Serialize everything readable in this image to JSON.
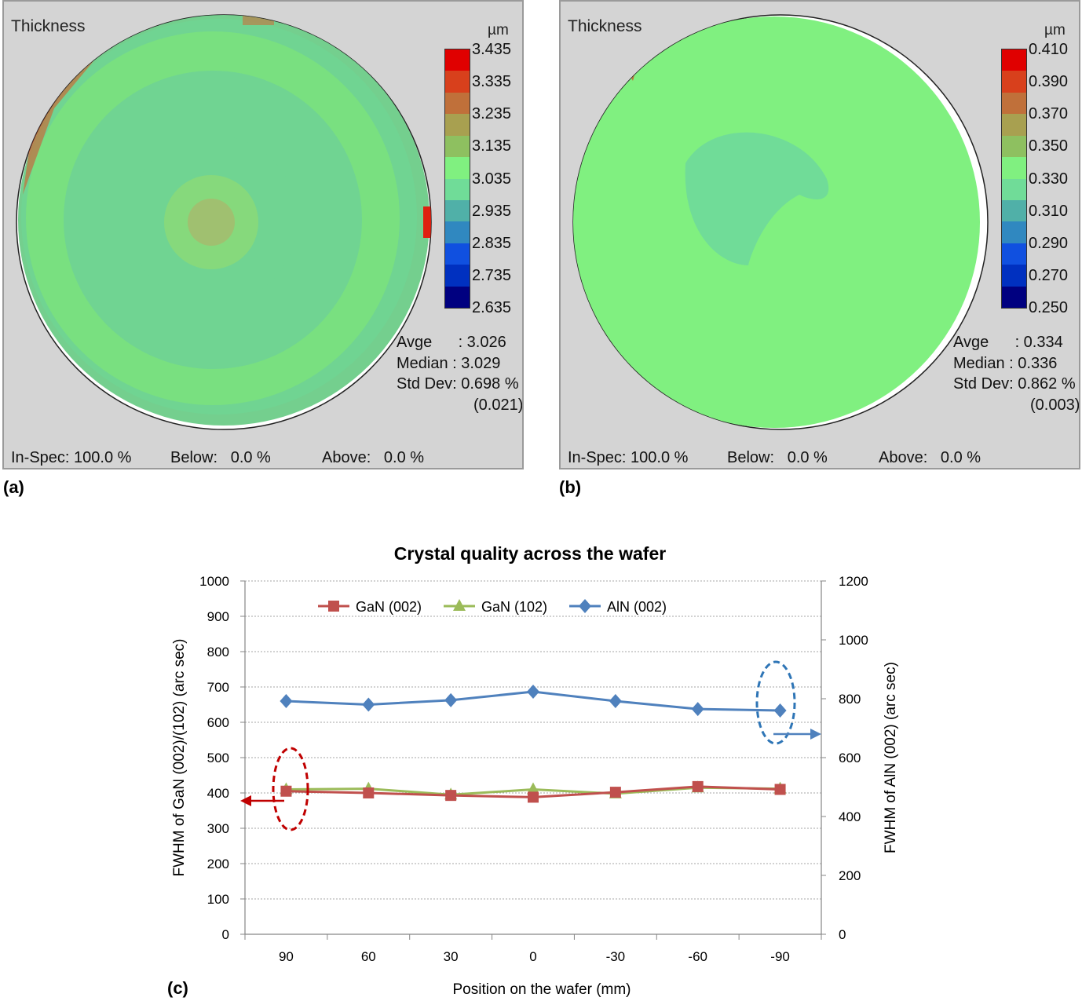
{
  "panel_a": {
    "title": "Thickness",
    "unit": "µm",
    "scale_labels": [
      "3.435",
      "3.335",
      "3.235",
      "3.135",
      "3.035",
      "2.935",
      "2.835",
      "2.735",
      "2.635"
    ],
    "stats": {
      "avg": "Avge      : 3.026",
      "median": "Median : 3.029",
      "stddev": "Std Dev: 0.698 %",
      "stddev_abs": "(0.021)"
    },
    "footer": {
      "inspec": "In-Spec: 100.0 %",
      "below": "Below:   0.0 %",
      "above": "Above:   0.0 %"
    },
    "label": "(a)"
  },
  "panel_b": {
    "title": "Thickness",
    "unit": "µm",
    "scale_labels": [
      "0.410",
      "0.390",
      "0.370",
      "0.350",
      "0.330",
      "0.310",
      "0.290",
      "0.270",
      "0.250"
    ],
    "stats": {
      "avg": "Avge      : 0.334",
      "median": "Median : 0.336",
      "stddev": "Std Dev: 0.862 %",
      "stddev_abs": "(0.003)"
    },
    "footer": {
      "inspec": "In-Spec: 100.0 %",
      "below": "Below:   0.0 %",
      "above": "Above:   0.0 %"
    },
    "label": "(b)"
  },
  "colorscale": [
    "#e00000",
    "#d8401c",
    "#c0703a",
    "#a8a050",
    "#8ec060",
    "#80f080",
    "#70dc98",
    "#50b0a8",
    "#3088c0",
    "#1050e0",
    "#0030c0",
    "#000080"
  ],
  "chart_data": {
    "type": "line",
    "title": "Crystal quality across the wafer",
    "xlabel": "Position on the wafer (mm)",
    "ylabel": "FWHM of GaN (002)/(102) (arc sec)",
    "y2label": "FWHM of AlN (002) (arc sec)",
    "categories": [
      "90",
      "60",
      "30",
      "0",
      "-30",
      "-60",
      "-90"
    ],
    "ylim": [
      0,
      1000
    ],
    "y2lim": [
      0,
      1200
    ],
    "yticks": [
      "0",
      "100",
      "200",
      "300",
      "400",
      "500",
      "600",
      "700",
      "800",
      "900",
      "1000"
    ],
    "y2ticks": [
      "0",
      "200",
      "400",
      "600",
      "800",
      "1000",
      "1200"
    ],
    "grid": true,
    "legend": "top",
    "series": [
      {
        "name": "GaN (002)",
        "axis": "left",
        "color": "#c0504d",
        "marker": "square",
        "values": [
          405,
          400,
          393,
          388,
          402,
          418,
          410
        ]
      },
      {
        "name": "GaN (102)",
        "axis": "left",
        "color": "#9bbb59",
        "marker": "triangle",
        "values": [
          410,
          412,
          395,
          410,
          398,
          415,
          412
        ]
      },
      {
        "name": "AlN (002)",
        "axis": "right",
        "color": "#4f81bd",
        "marker": "diamond",
        "values": [
          792,
          780,
          795,
          824,
          792,
          765,
          760
        ]
      }
    ],
    "panel_label": "(c)"
  }
}
